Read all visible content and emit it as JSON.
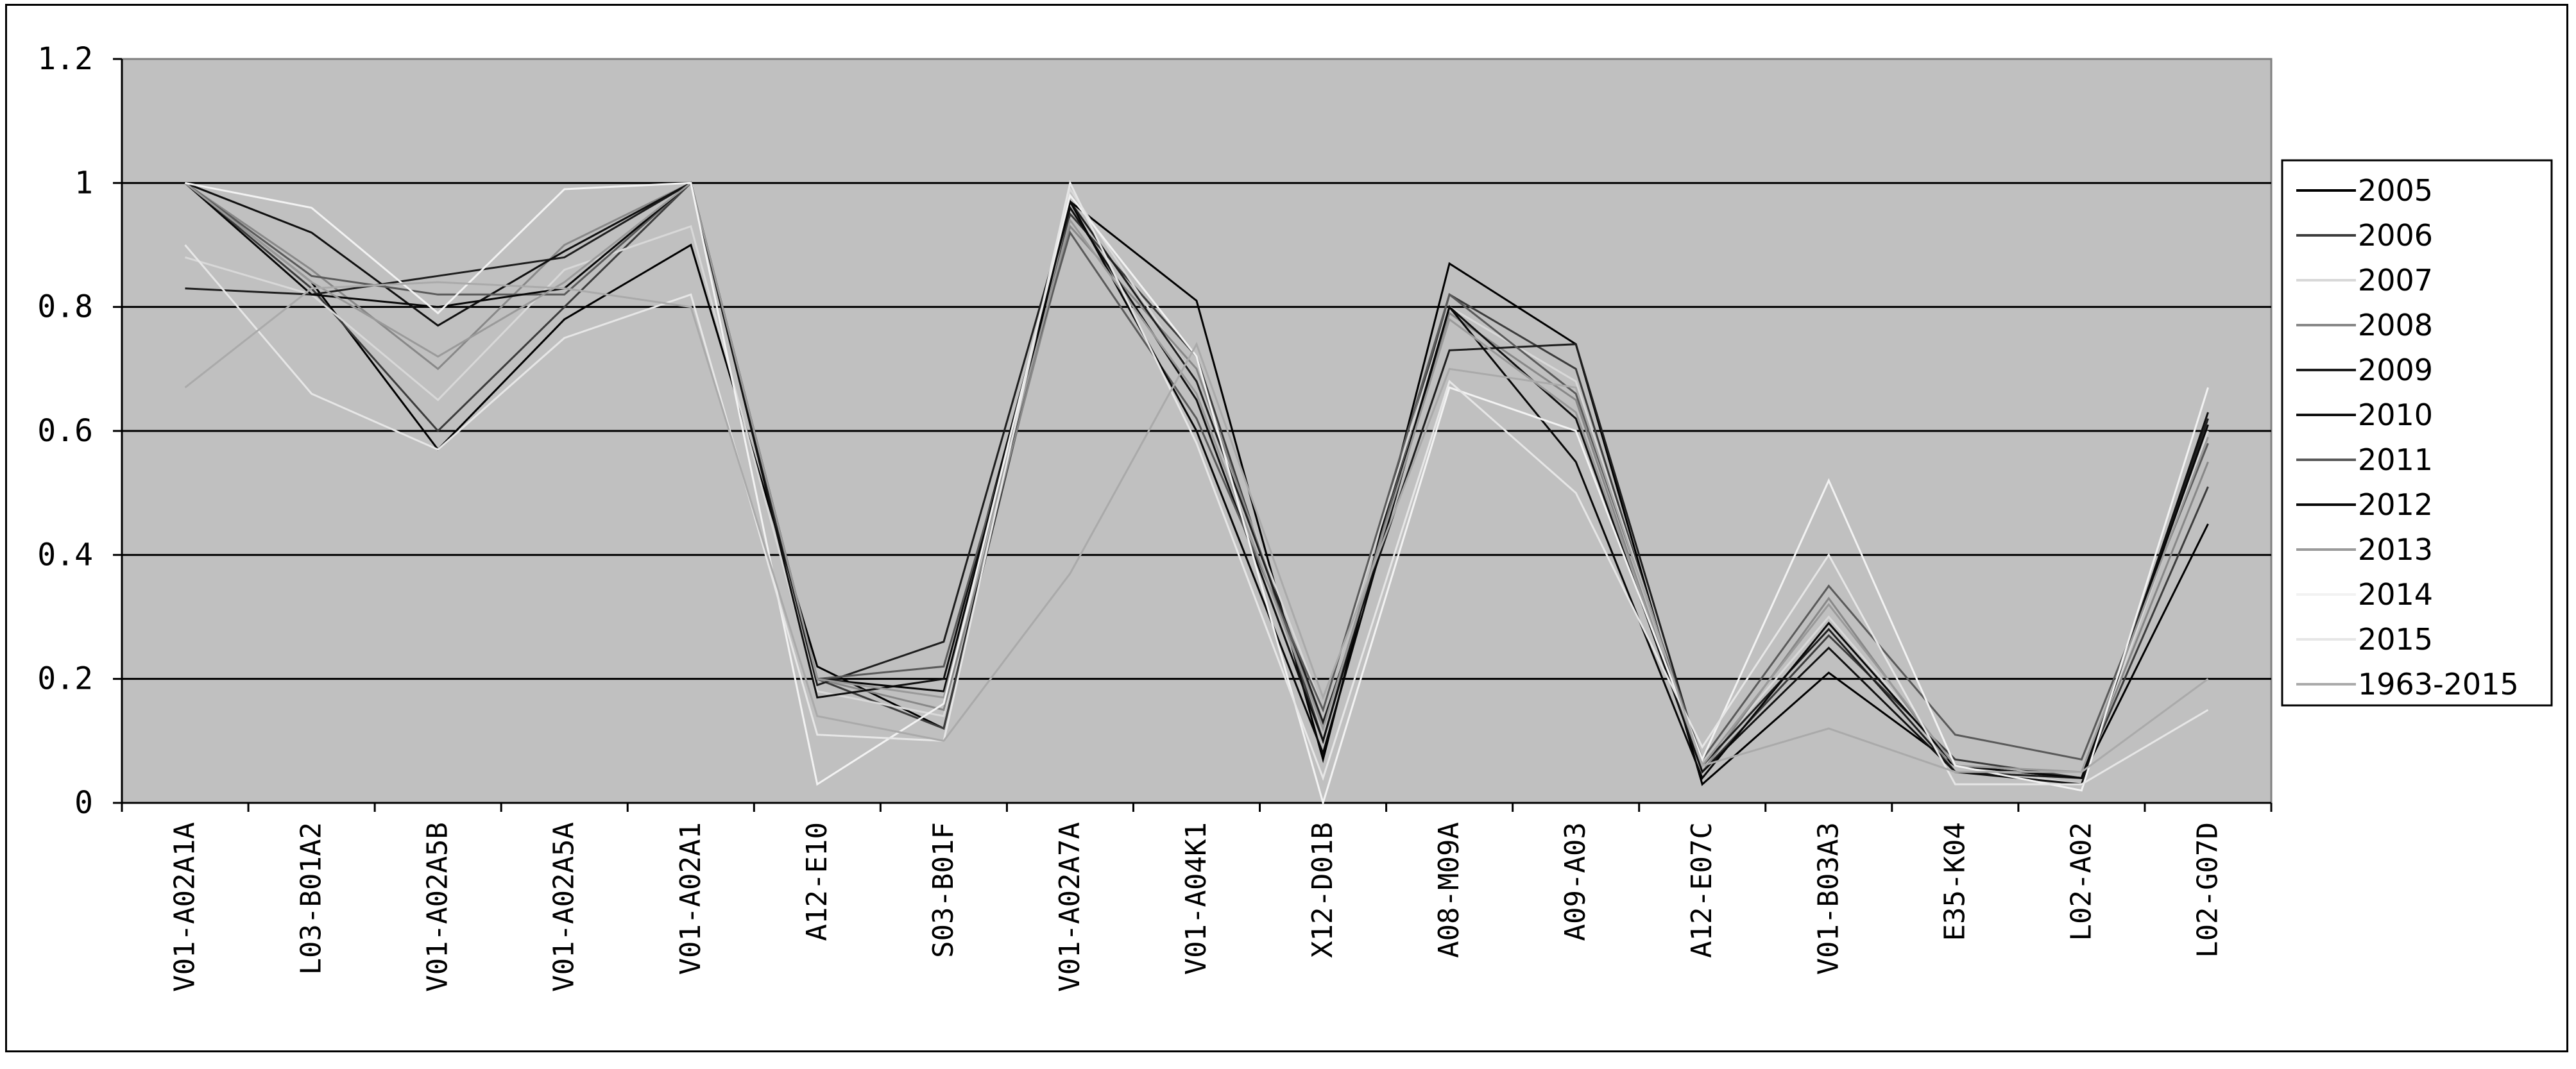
{
  "chart_data": {
    "type": "line",
    "title": "",
    "xlabel": "",
    "ylabel": "",
    "ylim": [
      0,
      1.2
    ],
    "yticks": [
      0,
      0.2,
      0.4,
      0.6,
      0.8,
      1,
      1.2
    ],
    "ytick_labels": [
      "0",
      "0.2",
      "0.4",
      "0.6",
      "0.8",
      "1",
      "1.2"
    ],
    "grid": true,
    "legend_position": "right",
    "categories": [
      "V01-A02A1A",
      "L03-B01A2",
      "V01-A02A5B",
      "V01-A02A5A",
      "V01-A02A1",
      "A12-E10",
      "S03-B01F",
      "V01-A02A7A",
      "V01-A04K1",
      "X12-D01B",
      "A08-M09A",
      "A09-A03",
      "A12-E07C",
      "V01-B03A3",
      "E35-K04",
      "L02-A02",
      "L02-G07D"
    ],
    "series": [
      {
        "name": "2005",
        "color": "#000000",
        "values": [
          1.0,
          0.84,
          0.57,
          0.78,
          0.9,
          0.22,
          0.12,
          0.97,
          0.81,
          0.07,
          0.87,
          0.74,
          0.03,
          0.21,
          0.06,
          0.04,
          0.45
        ]
      },
      {
        "name": "2006",
        "color": "#3c3c3c",
        "values": [
          1.0,
          0.83,
          0.6,
          0.8,
          1.0,
          0.2,
          0.12,
          0.95,
          0.72,
          0.1,
          0.82,
          0.7,
          0.05,
          0.27,
          0.07,
          0.04,
          0.51
        ]
      },
      {
        "name": "2007",
        "color": "#d8d8d8",
        "values": [
          0.88,
          0.82,
          0.65,
          0.86,
          0.93,
          0.18,
          0.14,
          0.99,
          0.68,
          0.15,
          0.8,
          0.68,
          0.06,
          0.3,
          0.06,
          0.03,
          0.6
        ]
      },
      {
        "name": "2008",
        "color": "#888888",
        "values": [
          1.0,
          0.86,
          0.7,
          0.9,
          1.0,
          0.2,
          0.15,
          0.93,
          0.7,
          0.12,
          0.79,
          0.65,
          0.05,
          0.33,
          0.05,
          0.04,
          0.55
        ]
      },
      {
        "name": "2009",
        "color": "#1e1e1e",
        "values": [
          0.83,
          0.82,
          0.85,
          0.88,
          1.0,
          0.19,
          0.26,
          0.97,
          0.68,
          0.13,
          0.73,
          0.74,
          0.06,
          0.28,
          0.05,
          0.04,
          0.62
        ]
      },
      {
        "name": "2010",
        "color": "#101010",
        "values": [
          1.0,
          0.92,
          0.77,
          0.89,
          1.0,
          0.17,
          0.2,
          0.96,
          0.65,
          0.1,
          0.8,
          0.62,
          0.05,
          0.25,
          0.05,
          0.03,
          0.63
        ]
      },
      {
        "name": "2011",
        "color": "#5a5a5a",
        "values": [
          1.0,
          0.85,
          0.82,
          0.82,
          1.0,
          0.2,
          0.22,
          0.92,
          0.62,
          0.15,
          0.82,
          0.66,
          0.07,
          0.35,
          0.11,
          0.07,
          0.58
        ]
      },
      {
        "name": "2012",
        "color": "#080808",
        "values": [
          1.0,
          0.82,
          0.8,
          0.83,
          1.0,
          0.2,
          0.18,
          0.97,
          0.6,
          0.08,
          0.8,
          0.55,
          0.04,
          0.29,
          0.06,
          0.04,
          0.61
        ]
      },
      {
        "name": "2013",
        "color": "#9a9a9a",
        "values": [
          1.0,
          0.84,
          0.72,
          0.84,
          1.0,
          0.2,
          0.17,
          0.94,
          0.66,
          0.12,
          0.78,
          0.63,
          0.06,
          0.32,
          0.06,
          0.05,
          0.59
        ]
      },
      {
        "name": "2014",
        "color": "#f2f2f2",
        "values": [
          1.0,
          0.96,
          0.79,
          0.99,
          1.0,
          0.03,
          0.16,
          0.98,
          0.72,
          0.0,
          0.67,
          0.6,
          0.07,
          0.52,
          0.06,
          0.02,
          0.67
        ]
      },
      {
        "name": "2015",
        "color": "#e6e6e6",
        "values": [
          0.9,
          0.66,
          0.57,
          0.75,
          0.82,
          0.11,
          0.1,
          1.0,
          0.58,
          0.04,
          0.68,
          0.5,
          0.09,
          0.4,
          0.03,
          0.03,
          0.15
        ]
      },
      {
        "name": "1963-2015",
        "color": "#aaaaaa",
        "values": [
          0.67,
          0.83,
          0.84,
          0.83,
          0.8,
          0.14,
          0.1,
          0.37,
          0.74,
          0.17,
          0.7,
          0.67,
          0.06,
          0.12,
          0.05,
          0.05,
          0.2
        ]
      }
    ]
  },
  "colors": {
    "plot_background": "#c0c0c0",
    "grid": "#000000",
    "axis": "#000000"
  }
}
